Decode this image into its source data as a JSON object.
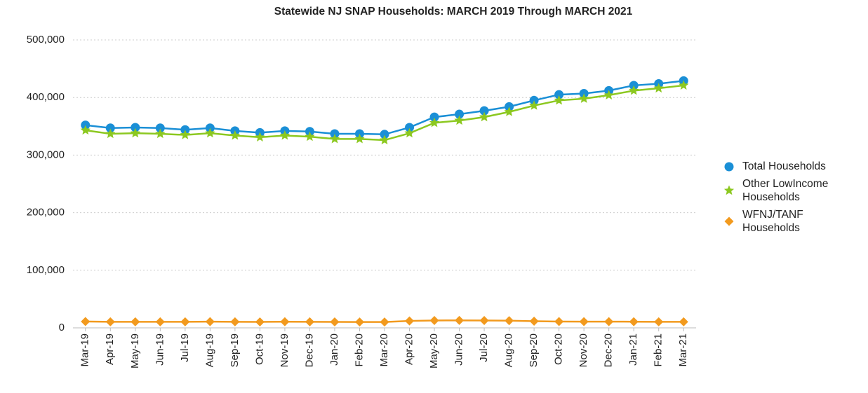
{
  "chart_data": {
    "type": "line",
    "title": "Statewide NJ SNAP Households:  MARCH 2019 Through MARCH 2021",
    "categories": [
      "Mar-19",
      "Apr-19",
      "May-19",
      "Jun-19",
      "Jul-19",
      "Aug-19",
      "Sep-19",
      "Oct-19",
      "Nov-19",
      "Dec-19",
      "Jan-20",
      "Feb-20",
      "Mar-20",
      "Apr-20",
      "May-20",
      "Jun-20",
      "Jul-20",
      "Aug-20",
      "Sep-20",
      "Oct-20",
      "Nov-20",
      "Dec-20",
      "Jan-21",
      "Feb-21",
      "Mar-21"
    ],
    "series": [
      {
        "name": "Total Households",
        "color": "#1a8fd6",
        "marker": "circle",
        "values": [
          352000,
          347000,
          348000,
          347000,
          344000,
          347000,
          342000,
          339000,
          342000,
          341000,
          337000,
          337000,
          336000,
          348000,
          366000,
          371000,
          377000,
          384000,
          395000,
          405000,
          407000,
          412000,
          421000,
          424000,
          429000
        ]
      },
      {
        "name": "Other LowIncome Households",
        "color": "#8cc820",
        "marker": "star",
        "values": [
          343000,
          337000,
          338000,
          337000,
          335000,
          338000,
          334000,
          331000,
          334000,
          332000,
          328000,
          328000,
          326000,
          338000,
          356000,
          360000,
          366000,
          375000,
          386000,
          395000,
          398000,
          404000,
          412000,
          416000,
          421000
        ]
      },
      {
        "name": "WFNJ/TANF Households",
        "color": "#f29a1e",
        "marker": "diamond",
        "values": [
          11000,
          10500,
          10500,
          10500,
          10500,
          10800,
          10500,
          10400,
          10600,
          10500,
          10300,
          10200,
          10200,
          12000,
          12800,
          13000,
          12800,
          12500,
          11500,
          11000,
          10800,
          10800,
          10700,
          10500,
          10500
        ]
      }
    ],
    "ylim": [
      0,
      500000
    ],
    "yticks": [
      0,
      {
        "value": 100000,
        "label": "100,000"
      },
      {
        "value": 200000,
        "label": "200,000"
      },
      {
        "value": 300000,
        "label": "300,000"
      },
      {
        "value": 400000,
        "label": "400,000"
      },
      {
        "value": 500000,
        "label": "500,000"
      }
    ],
    "grid": true,
    "legend": "right"
  }
}
